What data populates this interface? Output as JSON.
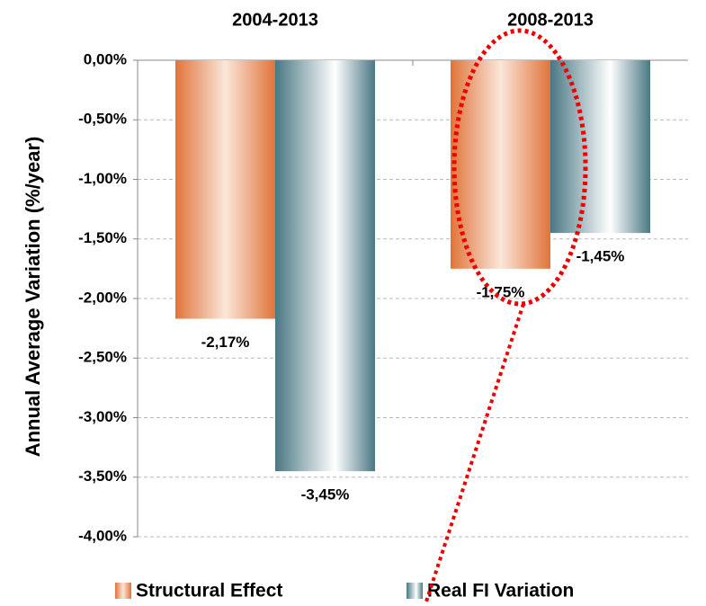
{
  "chart_data": {
    "type": "bar",
    "y_label": "Annual Average Variation (%/year)",
    "categories": [
      "2004-2013",
      "2008-2013"
    ],
    "series": [
      {
        "name": "Structural Effect",
        "color": "#e0743a",
        "values": [
          -2.17,
          -1.75
        ],
        "value_labels": [
          "-2,17%",
          "-1,75%"
        ]
      },
      {
        "name": "Real FI Variation",
        "color": "#4a7884",
        "values": [
          -3.45,
          -1.45
        ],
        "value_labels": [
          "-3,45%",
          "-1,45%"
        ]
      }
    ],
    "ylim": [
      -4,
      0
    ],
    "yticks": [
      {
        "value": 0,
        "label": "0,00%"
      },
      {
        "value": -0.5,
        "label": "-0,50%"
      },
      {
        "value": -1,
        "label": "-1,00%"
      },
      {
        "value": -1.5,
        "label": "-1,50%"
      },
      {
        "value": -2,
        "label": "-2,00%"
      },
      {
        "value": -2.5,
        "label": "-2,50%"
      },
      {
        "value": -3,
        "label": "-3,00%"
      },
      {
        "value": -3.5,
        "label": "-3,50%"
      },
      {
        "value": -4,
        "label": "-4,00%"
      }
    ],
    "grid": true
  }
}
